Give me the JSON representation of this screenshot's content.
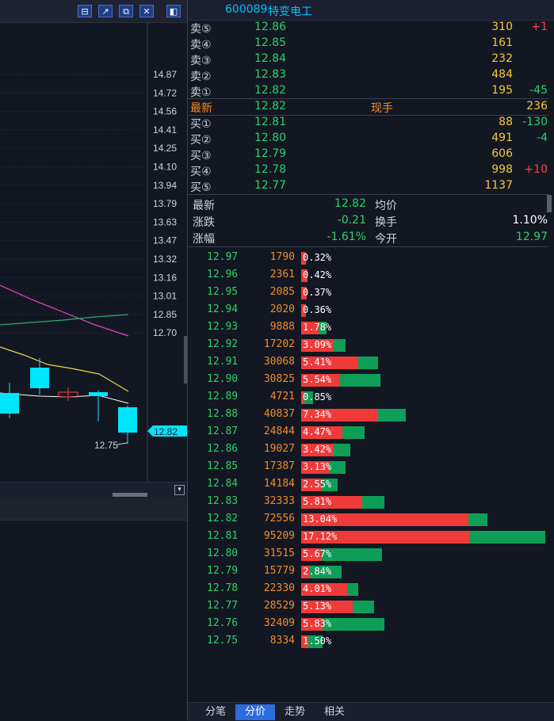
{
  "toolbar": {
    "btn1": "⊟",
    "btn2": "↗",
    "btn3": "⧉",
    "btn4": "✕",
    "btn5": "◧"
  },
  "stock": {
    "code": "600089",
    "name": "特变电工"
  },
  "chart": {
    "price_labels": [
      "14.87",
      "14.72",
      "14.56",
      "14.41",
      "14.25",
      "14.10",
      "13.94",
      "13.79",
      "13.63",
      "13.47",
      "13.32",
      "13.16",
      "13.01",
      "12.85",
      "12.70"
    ],
    "current_tag": "12.82",
    "low_annotation": "12.75"
  },
  "order_book": {
    "asks": [
      {
        "label": "卖⑤",
        "price": "12.86",
        "volume": "310",
        "change": "+1",
        "change_color": "#ff4040"
      },
      {
        "label": "卖④",
        "price": "12.85",
        "volume": "161",
        "change": "",
        "change_color": "#ff4040"
      },
      {
        "label": "卖③",
        "price": "12.84",
        "volume": "232",
        "change": "",
        "change_color": "#ff4040"
      },
      {
        "label": "卖②",
        "price": "12.83",
        "volume": "484",
        "change": "",
        "change_color": "#ff4040"
      },
      {
        "label": "卖①",
        "price": "12.82",
        "volume": "195",
        "change": "-45",
        "change_color": "#2bd16b"
      }
    ],
    "last": {
      "label": "最新",
      "price": "12.82",
      "mid_label": "现手",
      "volume": "236"
    },
    "bids": [
      {
        "label": "买①",
        "price": "12.81",
        "volume": "88",
        "change": "-130",
        "change_color": "#2bd16b"
      },
      {
        "label": "买②",
        "price": "12.80",
        "volume": "491",
        "change": "-4",
        "change_color": "#2bd16b"
      },
      {
        "label": "买③",
        "price": "12.79",
        "volume": "606",
        "change": "",
        "change_color": "#2bd16b"
      },
      {
        "label": "买④",
        "price": "12.78",
        "volume": "998",
        "change": "+10",
        "change_color": "#ff4040"
      },
      {
        "label": "买⑤",
        "price": "12.77",
        "volume": "1137",
        "change": "",
        "change_color": "#2bd16b"
      }
    ]
  },
  "stats": [
    {
      "l1": "最新",
      "v1": "12.82",
      "l2": "均价",
      "v2": ""
    },
    {
      "l1": "涨跌",
      "v1": "-0.21",
      "l2": "换手",
      "v2": "1.10%"
    },
    {
      "l1": "涨幅",
      "v1": "-1.61%",
      "l2": "今开",
      "v2": "12.97"
    }
  ],
  "price_distribution": [
    {
      "price": "12.97",
      "volume": "1790",
      "pct": "0.32%",
      "red": 0.32,
      "green": 0.0
    },
    {
      "price": "12.96",
      "volume": "2361",
      "pct": "0.42%",
      "red": 0.42,
      "green": 0.0
    },
    {
      "price": "12.95",
      "volume": "2085",
      "pct": "0.37%",
      "red": 0.37,
      "green": 0.0
    },
    {
      "price": "12.94",
      "volume": "2020",
      "pct": "0.36%",
      "red": 0.36,
      "green": 0.0
    },
    {
      "price": "12.93",
      "volume": "9888",
      "pct": "1.78%",
      "red": 1.2,
      "green": 0.58
    },
    {
      "price": "12.92",
      "volume": "17202",
      "pct": "3.09%",
      "red": 2.2,
      "green": 0.89
    },
    {
      "price": "12.91",
      "volume": "30068",
      "pct": "5.41%",
      "red": 4.0,
      "green": 1.41
    },
    {
      "price": "12.90",
      "volume": "30825",
      "pct": "5.54%",
      "red": 2.7,
      "green": 2.84
    },
    {
      "price": "12.89",
      "volume": "4721",
      "pct": "0.85%",
      "red": 0.2,
      "green": 0.65
    },
    {
      "price": "12.88",
      "volume": "40837",
      "pct": "7.34%",
      "red": 5.4,
      "green": 1.94
    },
    {
      "price": "12.87",
      "volume": "24844",
      "pct": "4.47%",
      "red": 2.9,
      "green": 1.57
    },
    {
      "price": "12.86",
      "volume": "19027",
      "pct": "3.42%",
      "red": 2.3,
      "green": 1.12
    },
    {
      "price": "12.85",
      "volume": "17387",
      "pct": "3.13%",
      "red": 2.0,
      "green": 1.13
    },
    {
      "price": "12.84",
      "volume": "14184",
      "pct": "2.55%",
      "red": 1.4,
      "green": 1.15
    },
    {
      "price": "12.83",
      "volume": "32333",
      "pct": "5.81%",
      "red": 4.3,
      "green": 1.51
    },
    {
      "price": "12.82",
      "volume": "72556",
      "pct": "13.04%",
      "red": 11.7,
      "green": 1.34
    },
    {
      "price": "12.81",
      "volume": "95209",
      "pct": "17.12%",
      "red": 11.8,
      "green": 5.32
    },
    {
      "price": "12.80",
      "volume": "31515",
      "pct": "5.67%",
      "red": 1.4,
      "green": 4.27
    },
    {
      "price": "12.79",
      "volume": "15779",
      "pct": "2.84%",
      "red": 0.6,
      "green": 2.24
    },
    {
      "price": "12.78",
      "volume": "22330",
      "pct": "4.01%",
      "red": 3.2,
      "green": 0.81
    },
    {
      "price": "12.77",
      "volume": "28529",
      "pct": "5.13%",
      "red": 3.6,
      "green": 1.53
    },
    {
      "price": "12.76",
      "volume": "32409",
      "pct": "5.83%",
      "red": 1.5,
      "green": 4.33
    },
    {
      "price": "12.75",
      "volume": "8334",
      "pct": "1.50%",
      "red": 0.5,
      "green": 1.0
    }
  ],
  "tabs": [
    {
      "label": "分笔",
      "active": false
    },
    {
      "label": "分价",
      "active": true
    },
    {
      "label": "走势",
      "active": false
    },
    {
      "label": "相关",
      "active": false
    }
  ]
}
